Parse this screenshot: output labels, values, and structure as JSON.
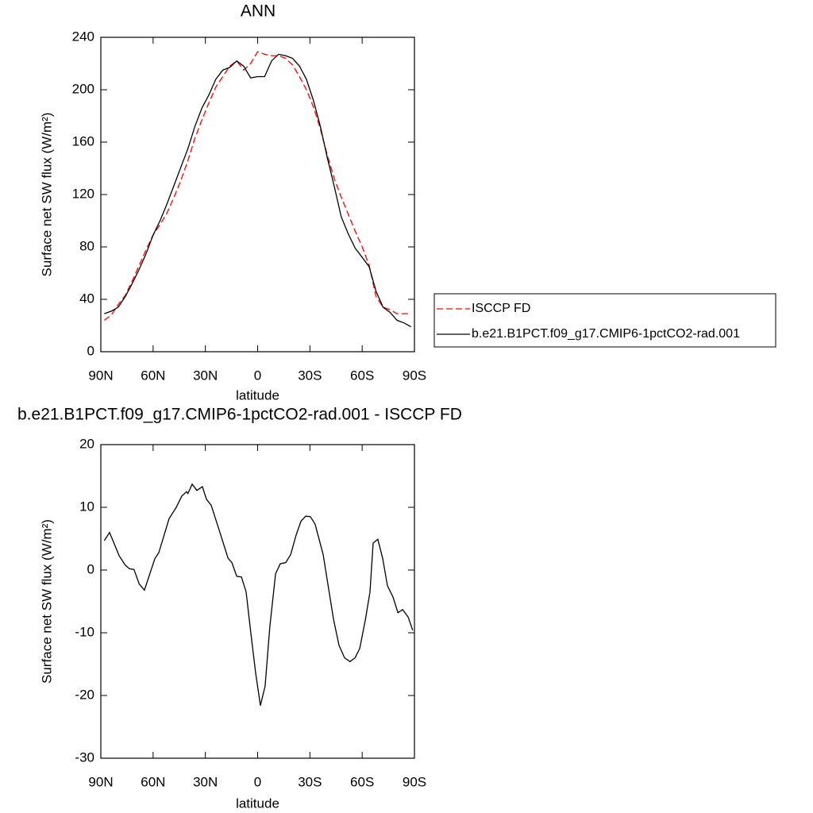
{
  "chart_data": [
    {
      "type": "line",
      "title": "ANN",
      "xlabel": "latitude",
      "ylabel": "Surface net SW flux (W/m²)",
      "x": [
        88,
        84,
        80,
        76,
        72,
        68,
        64,
        60,
        56,
        52,
        48,
        44,
        40,
        36,
        32,
        28,
        24,
        20,
        16,
        12,
        8,
        4,
        0,
        -4,
        -8,
        -12,
        -16,
        -20,
        -24,
        -28,
        -32,
        -36,
        -40,
        -44,
        -48,
        -52,
        -56,
        -60,
        -64,
        -68,
        -72,
        -76,
        -80,
        -84,
        -88
      ],
      "series": [
        {
          "name": "ISCCP FD",
          "color": "#ff0000",
          "line_style": "dashed",
          "values": [
            24,
            28,
            36,
            43,
            54,
            66,
            78,
            89,
            97,
            106,
            118,
            131,
            146,
            163,
            177,
            190,
            202,
            210,
            218,
            222,
            215,
            220,
            229,
            227,
            226,
            226,
            224,
            219,
            210,
            200,
            187,
            170,
            150,
            132,
            118,
            105,
            92,
            80,
            66,
            42,
            34,
            32,
            29,
            29,
            29
          ]
        },
        {
          "name": "b.e21.B1PCT.f09_g17.CMIP6-1pctCO2-rad.001",
          "color": "#000000",
          "line_style": "solid",
          "values": [
            29,
            31,
            34,
            42,
            52,
            63,
            75,
            89,
            100,
            113,
            127,
            141,
            155,
            172,
            186,
            196,
            208,
            215,
            217,
            222,
            218,
            209,
            210,
            210,
            222,
            227,
            226,
            224,
            218,
            208,
            192,
            172,
            148,
            126,
            103,
            90,
            79,
            72,
            65,
            46,
            34,
            30,
            24,
            22,
            19
          ]
        }
      ],
      "xlim": [
        90,
        -90
      ],
      "xticks": [
        {
          "value": 90,
          "label": "90N"
        },
        {
          "value": 60,
          "label": "60N"
        },
        {
          "value": 30,
          "label": "30N"
        },
        0,
        {
          "value": -30,
          "label": "30S"
        },
        {
          "value": -60,
          "label": "60S"
        },
        {
          "value": -90,
          "label": "90S"
        }
      ],
      "ylim": [
        0,
        240
      ],
      "yticks": [
        0,
        40,
        80,
        120,
        160,
        200,
        240
      ],
      "legend": "right"
    },
    {
      "type": "line",
      "title": "b.e21.B1PCT.f09_g17.CMIP6-1pctCO2-rad.001 - ISCCP FD",
      "xlabel": "latitude",
      "ylabel": "Surface net SW flux (W/m²)",
      "x": [
        88,
        85,
        79.5,
        76,
        73.6,
        71,
        68,
        65,
        59,
        56.7,
        50.8,
        46.7,
        43.5,
        40.8,
        40,
        37.6,
        34.8,
        31.7,
        29.4,
        26.6,
        21.2,
        17,
        14.8,
        12,
        9.3,
        6.6,
        3.9,
        1.1,
        -1.6,
        -4.3,
        -7,
        -10.3,
        -13,
        -16.2,
        -19,
        -22,
        -24.9,
        -27.6,
        -30.3,
        -33,
        -37.6,
        -43.5,
        -46.7,
        -49.9,
        -53,
        -55.9,
        -58.6,
        -61.8,
        -64.5,
        -66.3,
        -69,
        -71.8,
        -74.5,
        -77.7,
        -80.5,
        -83.2,
        -86.4,
        -89
      ],
      "series": [
        {
          "color": "#000000",
          "line_style": "solid",
          "values": [
            4.7,
            6,
            2.3,
            0.8,
            0.2,
            0.1,
            -2.2,
            -3.2,
            1.8,
            2.8,
            8.2,
            10,
            11.8,
            12.5,
            12.2,
            13.7,
            12.7,
            13.3,
            11.3,
            10.3,
            5.6,
            1.9,
            1.2,
            -1,
            -1.1,
            -3.5,
            -10,
            -16.5,
            -21.6,
            -18.5,
            -9,
            -0.6,
            1,
            1.2,
            2.5,
            5.5,
            7.8,
            8.6,
            8.5,
            7.3,
            2.5,
            -7.8,
            -12,
            -14,
            -14.6,
            -14,
            -12.5,
            -8,
            -3.5,
            4.3,
            4.9,
            1.8,
            -2.5,
            -4.3,
            -6.8,
            -6.3,
            -7.5,
            -9.6
          ]
        }
      ],
      "xlim": [
        90,
        -90
      ],
      "xticks": [
        {
          "value": 90,
          "label": "90N"
        },
        {
          "value": 60,
          "label": "60N"
        },
        {
          "value": 30,
          "label": "30N"
        },
        0,
        {
          "value": -30,
          "label": "30S"
        },
        {
          "value": -60,
          "label": "60S"
        },
        {
          "value": -90,
          "label": "90S"
        }
      ],
      "ylim": [
        -30,
        20
      ],
      "yticks": [
        -30,
        -20,
        -10,
        0,
        10,
        20
      ]
    }
  ]
}
